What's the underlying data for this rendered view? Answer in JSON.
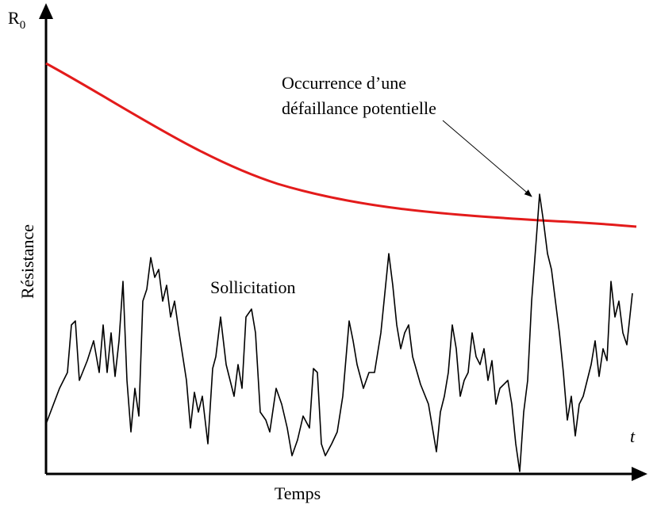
{
  "y_axis": {
    "top_label": "R",
    "top_label_sub": "0",
    "label": "Résistance"
  },
  "x_axis": {
    "label": "Temps",
    "end_label": "t"
  },
  "annotation": {
    "line1": "Occurrence d’une",
    "line2": "défaillance potentielle"
  },
  "curves": {
    "load": "Sollicitation"
  }
}
